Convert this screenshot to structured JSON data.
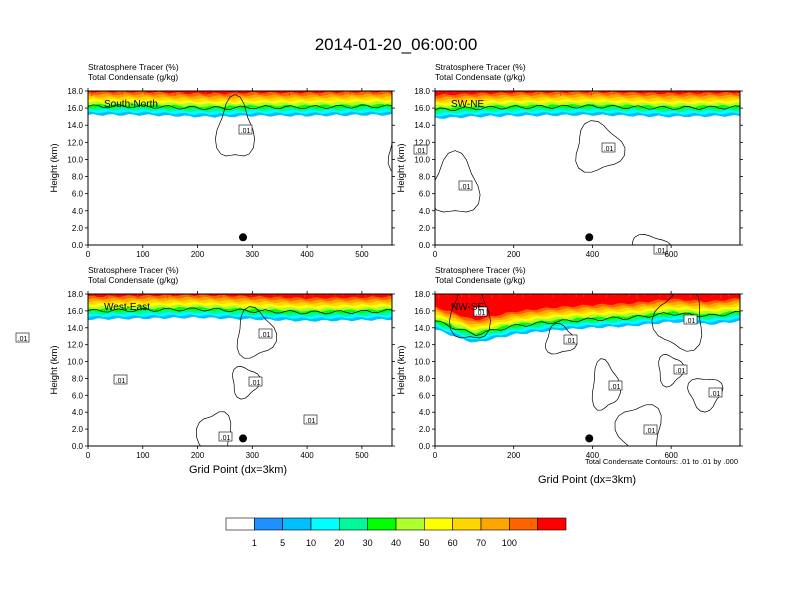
{
  "title": "2014-01-20_06:00:00",
  "panel_subtitle_1": "Stratosphere Tracer   (%)",
  "panel_subtitle_2": "Total Condensate   (g/kg)",
  "ylabel": "Height (km)",
  "xlabel": "Grid Point (dx=3km)",
  "contour_note": "Total Condensate Contours: .01 to .01 by .000",
  "colorbar": {
    "labels": [
      "1",
      "5",
      "10",
      "20",
      "30",
      "40",
      "50",
      "60",
      "70",
      "100"
    ],
    "colors": [
      "#ffffff",
      "#1e90ff",
      "#00bfff",
      "#00ffff",
      "#00fa9a",
      "#00ff00",
      "#adff2f",
      "#ffff00",
      "#ffd700",
      "#ffa500",
      "#ff6300",
      "#ff0000"
    ]
  },
  "chart_data": [
    {
      "type": "heatmap",
      "panel": "South-North",
      "x_ticks": [
        "0",
        "100",
        "200",
        "300",
        "400",
        "500"
      ],
      "y_ticks": [
        "0.0",
        "2.0",
        "4.0",
        "6.0",
        "8.0",
        "10.0",
        "12.0",
        "14.0",
        "16.0",
        "18.0"
      ],
      "xlim": [
        0,
        555
      ],
      "ylim": [
        0,
        18
      ],
      "contour_labels": [
        ".01",
        ".01"
      ],
      "tracer_profile": {
        "x": [
          0,
          100,
          200,
          250,
          300,
          400,
          500,
          555
        ],
        "base_height_km": [
          15.0,
          15.0,
          14.8,
          14.8,
          14.9,
          14.9,
          15.0,
          15.0
        ]
      },
      "marker": {
        "x": 283,
        "height_km": 0.9
      }
    },
    {
      "type": "heatmap",
      "panel": "SW-NE",
      "x_ticks": [
        "0",
        "200",
        "400",
        "600"
      ],
      "y_ticks": [
        "0.0",
        "2.0",
        "4.0",
        "6.0",
        "8.0",
        "10.0",
        "12.0",
        "14.0",
        "16.0",
        "18.0"
      ],
      "xlim": [
        0,
        775
      ],
      "ylim": [
        0,
        18
      ],
      "contour_labels": [
        ".01",
        ".01",
        ".01"
      ],
      "tracer_profile": {
        "x": [
          0,
          100,
          200,
          400,
          600,
          775
        ],
        "base_height_km": [
          14.6,
          14.8,
          14.9,
          15.0,
          14.8,
          14.9
        ]
      },
      "marker": {
        "x": 392,
        "height_km": 0.9
      }
    },
    {
      "type": "heatmap",
      "panel": "West-East",
      "x_ticks": [
        "0",
        "100",
        "200",
        "300",
        "400",
        "500"
      ],
      "y_ticks": [
        "0.0",
        "2.0",
        "4.0",
        "6.0",
        "8.0",
        "10.0",
        "12.0",
        "14.0",
        "16.0",
        "18.0"
      ],
      "xlim": [
        0,
        555
      ],
      "ylim": [
        0,
        18
      ],
      "contour_labels": [
        ".01",
        ".01",
        ".01",
        ".01",
        ".01"
      ],
      "tracer_profile": {
        "x": [
          0,
          100,
          200,
          300,
          400,
          500,
          555
        ],
        "base_height_km": [
          14.8,
          14.9,
          15.0,
          14.8,
          14.6,
          14.7,
          14.8
        ]
      },
      "marker": {
        "x": 283,
        "height_km": 0.9
      }
    },
    {
      "type": "heatmap",
      "panel": "NW-SE",
      "x_ticks": [
        "0",
        "200",
        "400",
        "600"
      ],
      "y_ticks": [
        "0.0",
        "2.0",
        "4.0",
        "6.0",
        "8.0",
        "10.0",
        "12.0",
        "14.0",
        "16.0",
        "18.0"
      ],
      "xlim": [
        0,
        775
      ],
      "ylim": [
        0,
        18
      ],
      "contour_labels": [
        ".01",
        ".01",
        ".01",
        ".01",
        ".01",
        ".01",
        ".01",
        ".01",
        ".01"
      ],
      "tracer_profile": {
        "x": [
          0,
          100,
          200,
          300,
          400,
          500,
          600,
          700,
          775
        ],
        "base_height_km": [
          13.6,
          12.0,
          13.0,
          13.5,
          13.8,
          14.0,
          14.5,
          14.2,
          14.6
        ]
      },
      "marker": {
        "x": 392,
        "height_km": 0.9
      }
    }
  ]
}
